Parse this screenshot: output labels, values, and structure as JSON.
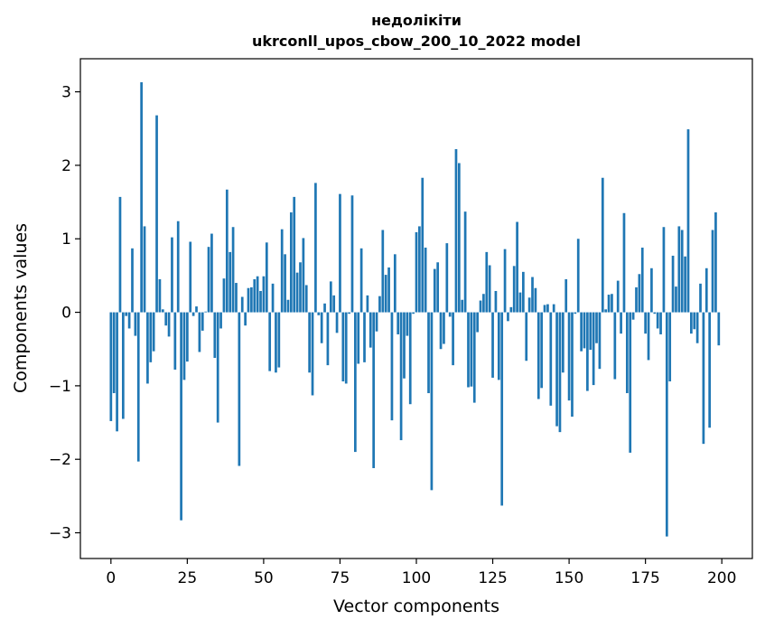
{
  "chart_data": {
    "type": "bar",
    "title": "недолікіти",
    "subtitle": "ukrconll_upos_cbow_200_10_2022 model",
    "xlabel": "Vector components",
    "ylabel": "Components values",
    "xlim": [
      -10,
      210
    ],
    "ylim": [
      -3.35,
      3.45
    ],
    "xticks": [
      0,
      25,
      50,
      75,
      100,
      125,
      150,
      175,
      200
    ],
    "xtick_labels": [
      "0",
      "25",
      "50",
      "75",
      "100",
      "125",
      "150",
      "175",
      "200"
    ],
    "yticks": [
      -3,
      -2,
      -1,
      0,
      1,
      2,
      3
    ],
    "ytick_labels": [
      "−3",
      "−2",
      "−1",
      "0",
      "1",
      "2",
      "3"
    ],
    "grid": false,
    "color": "#1f77b4",
    "x": [
      0,
      1,
      2,
      3,
      4,
      5,
      6,
      7,
      8,
      9,
      10,
      11,
      12,
      13,
      14,
      15,
      16,
      17,
      18,
      19,
      20,
      21,
      22,
      23,
      24,
      25,
      26,
      27,
      28,
      29,
      30,
      31,
      32,
      33,
      34,
      35,
      36,
      37,
      38,
      39,
      40,
      41,
      42,
      43,
      44,
      45,
      46,
      47,
      48,
      49,
      50,
      51,
      52,
      53,
      54,
      55,
      56,
      57,
      58,
      59,
      60,
      61,
      62,
      63,
      64,
      65,
      66,
      67,
      68,
      69,
      70,
      71,
      72,
      73,
      74,
      75,
      76,
      77,
      78,
      79,
      80,
      81,
      82,
      83,
      84,
      85,
      86,
      87,
      88,
      89,
      90,
      91,
      92,
      93,
      94,
      95,
      96,
      97,
      98,
      99,
      100,
      101,
      102,
      103,
      104,
      105,
      106,
      107,
      108,
      109,
      110,
      111,
      112,
      113,
      114,
      115,
      116,
      117,
      118,
      119,
      120,
      121,
      122,
      123,
      124,
      125,
      126,
      127,
      128,
      129,
      130,
      131,
      132,
      133,
      134,
      135,
      136,
      137,
      138,
      139,
      140,
      141,
      142,
      143,
      144,
      145,
      146,
      147,
      148,
      149,
      150,
      151,
      152,
      153,
      154,
      155,
      156,
      157,
      158,
      159,
      160,
      161,
      162,
      163,
      164,
      165,
      166,
      167,
      168,
      169,
      170,
      171,
      172,
      173,
      174,
      175,
      176,
      177,
      178,
      179,
      180,
      181,
      182,
      183,
      184,
      185,
      186,
      187,
      188,
      189,
      190,
      191,
      192,
      193,
      194,
      195,
      196,
      197,
      198,
      199
    ],
    "values": [
      -1.48,
      -1.1,
      -1.62,
      1.57,
      -1.45,
      -0.05,
      -0.22,
      0.87,
      -0.32,
      -2.03,
      3.13,
      1.17,
      -0.97,
      -0.68,
      -0.53,
      2.68,
      0.45,
      0.04,
      -0.18,
      -0.33,
      1.02,
      -0.78,
      1.24,
      -2.83,
      -0.92,
      -0.67,
      0.96,
      -0.05,
      0.08,
      -0.54,
      -0.25,
      0.01,
      0.89,
      1.07,
      -0.62,
      -1.5,
      -0.22,
      0.46,
      1.67,
      0.82,
      1.16,
      0.4,
      -2.09,
      0.21,
      -0.18,
      0.33,
      0.34,
      0.45,
      0.49,
      0.29,
      0.49,
      0.95,
      -0.8,
      0.39,
      -0.82,
      -0.75,
      1.13,
      0.79,
      0.17,
      1.36,
      1.57,
      0.54,
      0.68,
      1.01,
      0.37,
      -0.82,
      -1.13,
      1.76,
      -0.04,
      -0.42,
      0.12,
      -0.72,
      0.42,
      0.23,
      -0.28,
      1.61,
      -0.94,
      -0.97,
      -0.02,
      1.59,
      -1.9,
      -0.7,
      0.87,
      -0.68,
      0.23,
      -0.48,
      -2.12,
      -0.26,
      0.22,
      1.12,
      0.51,
      0.61,
      -1.47,
      0.79,
      -0.3,
      -1.74,
      -0.9,
      -0.32,
      -1.25,
      -0.02,
      1.09,
      1.17,
      1.83,
      0.88,
      -1.1,
      -2.42,
      0.59,
      0.68,
      -0.5,
      -0.43,
      0.94,
      -0.06,
      -0.72,
      2.22,
      2.03,
      0.17,
      1.37,
      -1.02,
      -1.01,
      -1.23,
      -0.27,
      0.16,
      0.25,
      0.82,
      0.64,
      -0.89,
      0.29,
      -0.92,
      -2.63,
      0.86,
      -0.12,
      0.07,
      0.63,
      1.23,
      0.27,
      0.55,
      -0.66,
      0.2,
      0.48,
      0.33,
      -1.18,
      -1.03,
      0.1,
      0.11,
      -1.27,
      0.11,
      -1.55,
      -1.63,
      -0.82,
      0.45,
      -1.2,
      -1.42,
      -0.02,
      1.0,
      -0.53,
      -0.49,
      -1.07,
      -0.51,
      -0.99,
      -0.42,
      -0.77,
      1.83,
      0.04,
      0.24,
      0.25,
      -0.91,
      0.43,
      -0.29,
      1.35,
      -1.1,
      -1.91,
      -0.1,
      0.34,
      0.52,
      0.88,
      -0.29,
      -0.65,
      0.6,
      -0.02,
      -0.22,
      -0.3,
      1.16,
      -3.05,
      -0.94,
      0.77,
      0.35,
      1.17,
      1.12,
      0.76,
      2.49,
      -0.29,
      -0.23,
      -0.42,
      0.39,
      -1.79,
      0.6,
      -1.57,
      1.12,
      1.36,
      -0.45
    ]
  }
}
